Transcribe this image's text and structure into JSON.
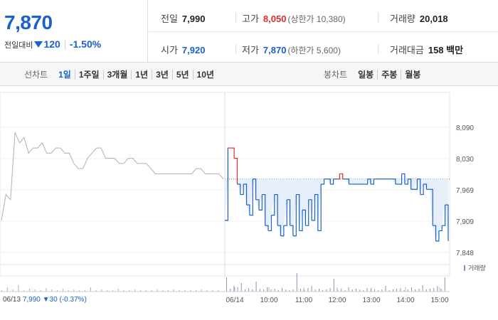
{
  "summary": {
    "current_price": "7,870",
    "change_label": "전일대비",
    "change_amount": "120",
    "change_percent": "-1.50%",
    "prev_close_label": "전일",
    "prev_close": "7,990",
    "high_label": "고가",
    "high": "8,050",
    "upper_limit": "(상한가 10,380)",
    "volume_label": "거래량",
    "volume": "20,018",
    "open_label": "시가",
    "open": "7,920",
    "low_label": "저가",
    "low": "7,870",
    "lower_limit": "(하한가 5,600)",
    "amount_label": "거래대금",
    "amount": "158 백만"
  },
  "periods": {
    "line_label": "선차트",
    "line_options": [
      "1일",
      "1주일",
      "3개월",
      "1년",
      "3년",
      "5년",
      "10년"
    ],
    "active": "1일",
    "candle_label": "봉차트",
    "candle_options": [
      "일봉",
      "주봉",
      "월봉"
    ]
  },
  "bottom": {
    "date": "06/13",
    "price": "7,990",
    "change": "▼30",
    "percent": "(-0.37%)"
  },
  "chart_data": {
    "type": "line",
    "y_ticks": [
      "8,090",
      "8,030",
      "7,969",
      "7,909",
      "7,848"
    ],
    "ylim": [
      7848,
      8090
    ],
    "x_labels": [
      "06/14",
      "10:00",
      "11:00",
      "12:00",
      "13:00",
      "14:00",
      "15:00"
    ],
    "volume_legend": "거래량",
    "reference_price": 7990,
    "colors": {
      "up": "#e02c2c",
      "down": "#1a61cc",
      "prev": "#b0b0b0",
      "fill": "#e6eff9",
      "volume": "#9b8ab8"
    },
    "series": [
      {
        "values": [
          7910,
          7960,
          7950,
          8080,
          8060,
          8070,
          8040,
          8050,
          8050,
          8060,
          8040,
          8040,
          8050,
          8050,
          8040,
          8040,
          8020,
          8010,
          8010,
          8030,
          8040,
          8050,
          8050,
          8030,
          8030,
          8030,
          8020,
          8020,
          8030,
          8030,
          8020,
          8020,
          8020,
          8010,
          8000,
          8000,
          8000,
          8000,
          8000,
          8000,
          8000,
          8000,
          8000,
          8010,
          8010,
          8000,
          8000,
          8000,
          8000,
          7990
        ]
      },
      {
        "values": [
          7910,
          8050,
          8050,
          8030,
          7980,
          7960,
          7980,
          7940,
          7920,
          7990,
          7950,
          7930,
          7960,
          7900,
          7890,
          7920,
          7960,
          7900,
          7880,
          7900,
          7950,
          7900,
          7880,
          7960,
          7890,
          7930,
          7900,
          7950,
          7910,
          7960,
          7890,
          7980,
          7990,
          7990,
          7980,
          7990,
          7990,
          8000,
          7990,
          7990,
          7980,
          7980,
          7980,
          7980,
          7980,
          7980,
          7990,
          7980,
          7990,
          7990,
          7990,
          7990,
          7990,
          7990,
          7990,
          7980,
          7980,
          8000,
          7980,
          7990,
          7970,
          7970,
          7990,
          7960,
          7980,
          7970,
          7970,
          7900,
          7870,
          7890,
          7900,
          7940,
          7870
        ]
      }
    ]
  }
}
